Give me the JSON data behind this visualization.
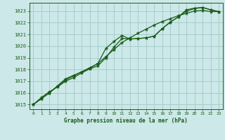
{
  "title": "Graphe pression niveau de la mer (hPa)",
  "background_color": "#cce8e8",
  "grid_color": "#a8cccc",
  "line_color": "#1a5c1a",
  "xlim": [
    -0.5,
    23.5
  ],
  "ylim": [
    1014.6,
    1023.7
  ],
  "yticks": [
    1015,
    1016,
    1017,
    1018,
    1019,
    1020,
    1021,
    1022,
    1023
  ],
  "xticks": [
    0,
    1,
    2,
    3,
    4,
    5,
    6,
    7,
    8,
    9,
    10,
    11,
    12,
    13,
    14,
    15,
    16,
    17,
    18,
    19,
    20,
    21,
    22,
    23
  ],
  "s1": [
    1015.0,
    1015.5,
    1016.0,
    1016.6,
    1017.2,
    1017.5,
    1017.8,
    1018.1,
    1018.5,
    1019.8,
    1020.4,
    1020.9,
    1020.6,
    1020.65,
    1020.7,
    1020.85,
    1021.5,
    1022.05,
    1022.5,
    1023.1,
    1023.25,
    1023.3,
    1023.1,
    1022.95
  ],
  "s2": [
    1015.0,
    1015.6,
    1016.1,
    1016.5,
    1017.0,
    1017.3,
    1017.7,
    1018.05,
    1018.3,
    1019.0,
    1019.9,
    1020.65,
    1020.6,
    1020.65,
    1020.7,
    1020.85,
    1021.5,
    1022.05,
    1022.5,
    1023.0,
    1023.2,
    1023.3,
    1023.1,
    1022.95
  ],
  "s3": [
    1015.0,
    1015.5,
    1016.0,
    1016.55,
    1017.1,
    1017.45,
    1017.8,
    1018.15,
    1018.5,
    1019.1,
    1019.7,
    1020.3,
    1020.7,
    1021.1,
    1021.45,
    1021.8,
    1022.1,
    1022.35,
    1022.6,
    1022.8,
    1023.0,
    1023.05,
    1022.95,
    1022.95
  ]
}
